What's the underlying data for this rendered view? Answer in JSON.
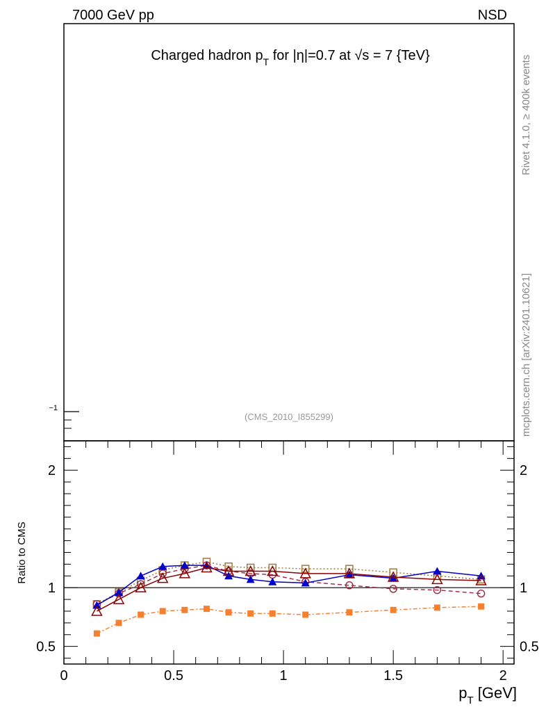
{
  "header": {
    "energy_label": "7000 GeV pp",
    "process_label": "NSD"
  },
  "side_text": {
    "rivet": "Rivet 4.1.0, ≥ 400k events",
    "mcplots": "mcplots.cern.ch [arXiv:2401.10621]"
  },
  "chart_data": [
    {
      "type": "line",
      "panel": "main",
      "title": "Charged hadron p_T for |η|=0.7 at √s = 7 {TeV}",
      "title_parts": {
        "a": "Charged hadron p",
        "sub": "T",
        "b": " for |η|=0.7 at √s = 7 {TeV}"
      },
      "annotation": "(CMS_2010_I855299)",
      "yticks": [
        {
          "label": "−1"
        }
      ],
      "series": []
    },
    {
      "type": "line",
      "panel": "ratio",
      "xlabel": "p_T [GeV]",
      "xlabel_parts": {
        "a": "p",
        "sub": "T",
        "b": " [GeV]"
      },
      "ylabel": "Ratio to CMS",
      "xlim": [
        0,
        2.05
      ],
      "ylim": [
        0.35,
        2.25
      ],
      "xticks": [
        {
          "value": 0,
          "label": "0"
        },
        {
          "value": 0.5,
          "label": "0.5"
        },
        {
          "value": 1,
          "label": "1"
        },
        {
          "value": 1.5,
          "label": "1.5"
        },
        {
          "value": 2,
          "label": "2"
        }
      ],
      "yticks": [
        {
          "value": 0.5,
          "label": "0.5"
        },
        {
          "value": 1,
          "label": "1"
        },
        {
          "value": 2,
          "label": "2"
        }
      ],
      "reference_line": 1,
      "x": [
        0.15,
        0.25,
        0.35,
        0.45,
        0.55,
        0.65,
        0.75,
        0.85,
        0.95,
        1.1,
        1.3,
        1.5,
        1.7,
        1.9
      ],
      "series": [
        {
          "name": "open-square-dotted",
          "color": "#a07a3a",
          "dash": "2,3",
          "marker": "open-square",
          "values": [
            0.86,
            0.96,
            1.06,
            1.15,
            1.19,
            1.22,
            1.18,
            1.17,
            1.17,
            1.16,
            1.16,
            1.13,
            1.1,
            1.07
          ]
        },
        {
          "name": "open-circle-dashed",
          "color": "#a0304a",
          "dash": "6,4",
          "marker": "open-circle",
          "values": [
            0.86,
            0.95,
            1.03,
            1.12,
            1.16,
            1.19,
            1.14,
            1.12,
            1.11,
            1.05,
            1.02,
            0.99,
            0.98,
            0.95
          ]
        },
        {
          "name": "filled-triangle-solid",
          "color": "#0000cc",
          "dash": "",
          "marker": "filled-triangle",
          "values": [
            0.85,
            0.96,
            1.1,
            1.18,
            1.19,
            1.19,
            1.1,
            1.07,
            1.05,
            1.04,
            1.11,
            1.08,
            1.14,
            1.1
          ]
        },
        {
          "name": "open-triangle-solid",
          "color": "#8b0000",
          "dash": "",
          "marker": "open-triangle",
          "values": [
            0.8,
            0.9,
            1.0,
            1.08,
            1.12,
            1.17,
            1.14,
            1.14,
            1.14,
            1.12,
            1.12,
            1.09,
            1.07,
            1.06
          ]
        },
        {
          "name": "filled-square-dashdot",
          "color": "#f58030",
          "dash": "6,3,2,3",
          "marker": "filled-square",
          "values": [
            0.61,
            0.7,
            0.77,
            0.8,
            0.81,
            0.82,
            0.79,
            0.78,
            0.78,
            0.77,
            0.79,
            0.81,
            0.83,
            0.84
          ]
        }
      ]
    }
  ]
}
